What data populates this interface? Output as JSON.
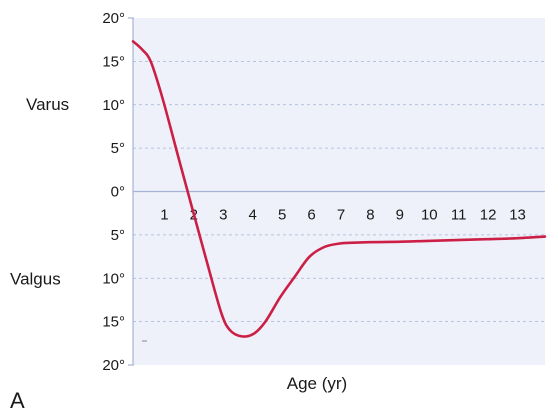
{
  "chart_data": {
    "type": "line",
    "panel_label": "A",
    "xlabel": "Age (yr)",
    "side_labels": {
      "upper": "Varus",
      "lower": "Valgus"
    },
    "y_tick_labels": [
      "20°",
      "15°",
      "10°",
      "5°",
      "0°",
      "5°",
      "10°",
      "15°",
      "20°"
    ],
    "y_tick_values": [
      20,
      15,
      10,
      5,
      0,
      -5,
      -10,
      -15,
      -20
    ],
    "x_tick_labels": [
      "1",
      "2",
      "3",
      "4",
      "5",
      "6",
      "7",
      "8",
      "9",
      "10",
      "11",
      "12",
      "13"
    ],
    "x_tick_values": [
      1,
      2,
      3,
      4,
      5,
      6,
      7,
      8,
      9,
      10,
      11,
      12,
      13
    ],
    "xlim": [
      0,
      14
    ],
    "ylim": [
      -20,
      20
    ],
    "grid": true,
    "series": [
      {
        "color": "#cc1f45",
        "x": [
          0,
          0.3,
          0.6,
          1.0,
          1.5,
          2.0,
          2.5,
          3.0,
          3.3,
          3.7,
          4.1,
          4.5,
          5.0,
          5.5,
          6.0,
          6.5,
          7.0,
          7.5,
          8.0,
          9.0,
          10.0,
          11.0,
          12.0,
          13.0,
          14.0
        ],
        "y": [
          17.3,
          16.4,
          15.0,
          10.8,
          4.5,
          -1.8,
          -8.0,
          -14.0,
          -16.0,
          -16.7,
          -16.4,
          -15.0,
          -12.2,
          -9.8,
          -7.5,
          -6.4,
          -6.0,
          -5.9,
          -5.85,
          -5.8,
          -5.7,
          -5.6,
          -5.5,
          -5.4,
          -5.2
        ]
      }
    ]
  },
  "colors": {
    "plot_background": "#eef1fa",
    "axis": "#a7b3d4",
    "grid": "#a7b3d4",
    "line": "#cc1f45"
  }
}
